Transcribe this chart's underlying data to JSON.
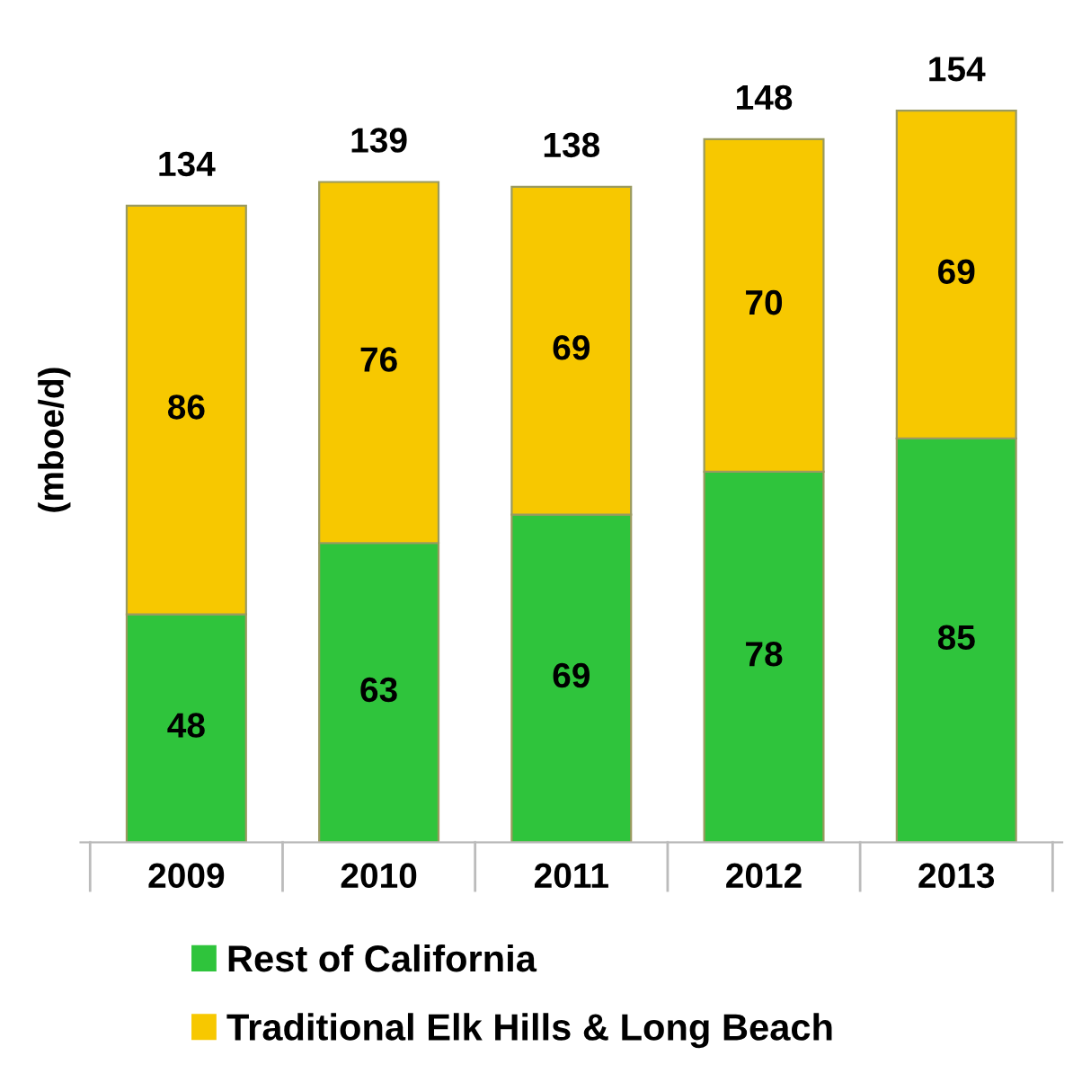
{
  "chart_data": {
    "type": "bar",
    "stacked": true,
    "ylabel": "(mboe/d)",
    "categories": [
      "2009",
      "2010",
      "2011",
      "2012",
      "2013"
    ],
    "series": [
      {
        "name": "Rest of California",
        "color": "#2fc43c",
        "values": [
          48,
          63,
          69,
          78,
          85
        ]
      },
      {
        "name": "Traditional Elk Hills & Long Beach",
        "color": "#f7c800",
        "values": [
          86,
          76,
          69,
          70,
          69
        ]
      }
    ],
    "data_labels": true,
    "totals": [
      "134",
      "139",
      "138",
      "148",
      "154"
    ],
    "legend": "bottom",
    "grid": false
  }
}
